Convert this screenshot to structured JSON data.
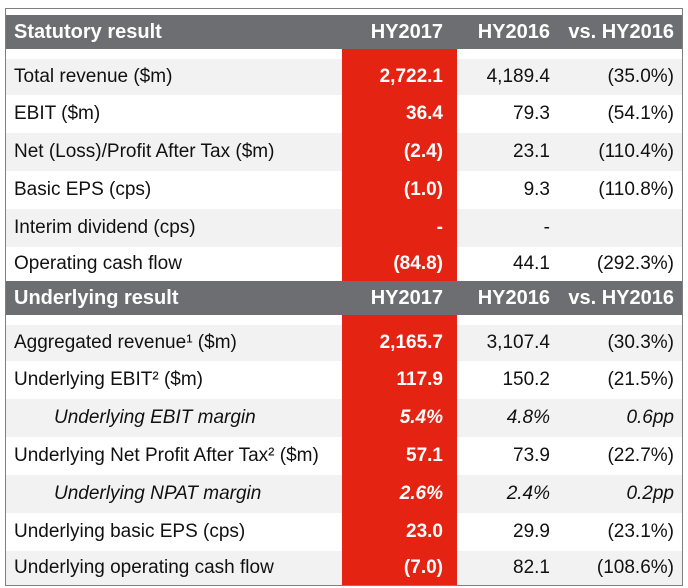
{
  "colors": {
    "header_bg": "#6d6e71",
    "highlight": "#e42313",
    "row_alt": "#f2f2f2"
  },
  "statutory": {
    "header": {
      "label": "Statutory result",
      "hy17": "HY2017",
      "hy16": "HY2016",
      "vs": "vs. HY2016"
    },
    "rows": [
      {
        "label": "Total revenue ($m)",
        "hy17": "2,722.1",
        "hy16": "4,189.4",
        "vs": "(35.0%)"
      },
      {
        "label": "EBIT ($m)",
        "hy17": "36.4",
        "hy16": "79.3",
        "vs": "(54.1%)"
      },
      {
        "label": "Net (Loss)/Profit After Tax ($m)",
        "hy17": "(2.4)",
        "hy16": "23.1",
        "vs": "(110.4%)"
      },
      {
        "label": "Basic EPS (cps)",
        "hy17": "(1.0)",
        "hy16": "9.3",
        "vs": "(110.8%)"
      },
      {
        "label": "Interim dividend  (cps)",
        "hy17": "-",
        "hy16": "-",
        "vs": ""
      },
      {
        "label": "Operating cash flow",
        "hy17": "(84.8)",
        "hy16": "44.1",
        "vs": "(292.3%)"
      }
    ]
  },
  "underlying": {
    "header": {
      "label": "Underlying result",
      "hy17": "HY2017",
      "hy16": "HY2016",
      "vs": "vs. HY2016"
    },
    "rows": [
      {
        "label": "Aggregated revenue¹ ($m)",
        "hy17": "2,165.7",
        "hy16": "3,107.4",
        "vs": "(30.3%)"
      },
      {
        "label": "Underlying  EBIT² ($m)",
        "hy17": "117.9",
        "hy16": "150.2",
        "vs": "(21.5%)"
      },
      {
        "label": "Underlying EBIT margin",
        "hy17": "5.4%",
        "hy16": "4.8%",
        "vs": "0.6pp"
      },
      {
        "label": "Underlying  Net Profit After Tax² ($m)",
        "hy17": "57.1",
        "hy16": "73.9",
        "vs": "(22.7%)"
      },
      {
        "label": "Underlying NPAT margin",
        "hy17": "2.6%",
        "hy16": "2.4%",
        "vs": "0.2pp"
      },
      {
        "label": "Underlying basic EPS (cps)",
        "hy17": "23.0",
        "hy16": "29.9",
        "vs": "(23.1%)"
      },
      {
        "label": "Underlying operating cash flow",
        "hy17": "(7.0)",
        "hy16": "82.1",
        "vs": "(108.6%)"
      }
    ]
  }
}
